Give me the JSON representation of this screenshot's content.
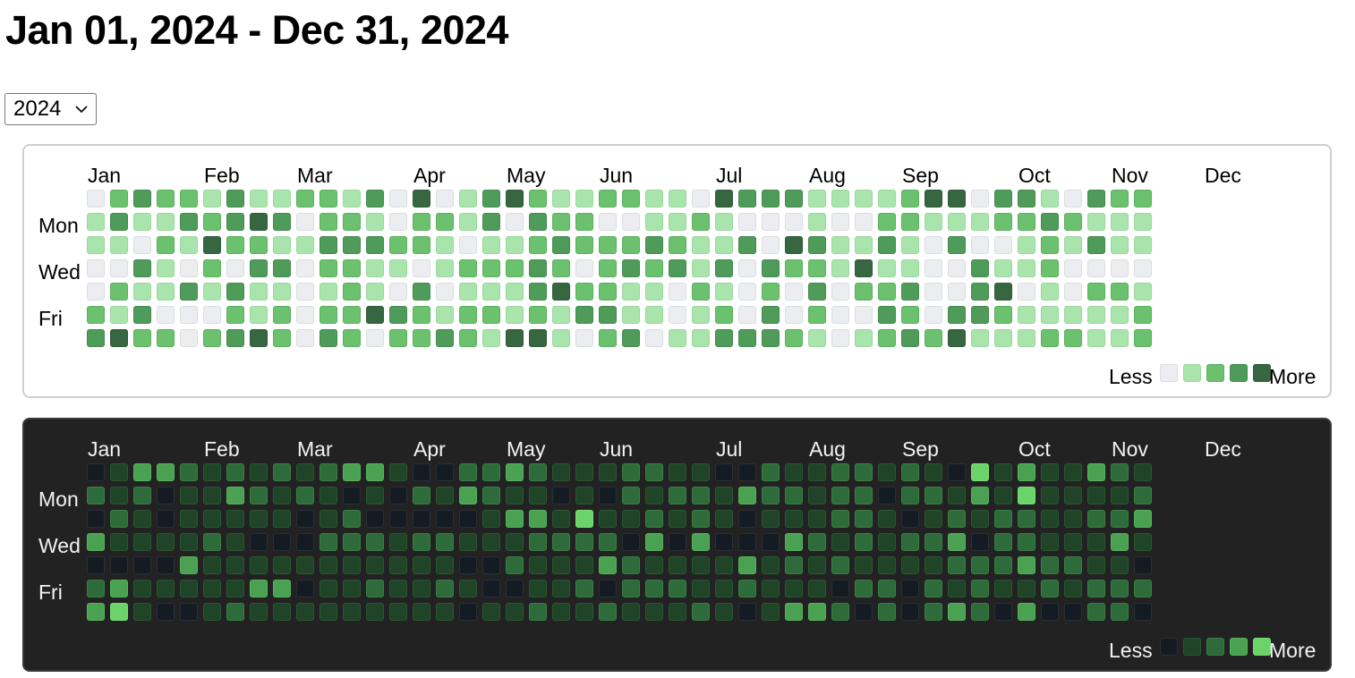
{
  "title": "Jan 01, 2024 - Dec 31, 2024",
  "year_select": {
    "value": "2024"
  },
  "months": [
    "Jan",
    "Feb",
    "Mar",
    "Apr",
    "May",
    "Jun",
    "Jul",
    "Aug",
    "Sep",
    "Oct",
    "Nov",
    "Dec"
  ],
  "day_labels": [
    "Mon",
    "Wed",
    "Fri"
  ],
  "legend": {
    "less": "Less",
    "more": "More"
  },
  "palettes": {
    "light": {
      "levels": [
        "#ebedf0",
        "#aae4ad",
        "#6bc16d",
        "#4f9b5a",
        "#376740"
      ],
      "border": [
        "#dcdde1",
        "#9bd79f",
        "#5cb05f",
        "#458a50",
        "#2f5a37"
      ]
    },
    "dark": {
      "levels": [
        "#151b23",
        "#1f4427",
        "#2e6b3a",
        "#4aa152",
        "#6bd36a"
      ],
      "border": [
        "#2a3038",
        "#2c5633",
        "#3b7d46",
        "#58b15f",
        "#7ade78"
      ]
    }
  },
  "calendar": {
    "first_weekday": "Monday",
    "light_levels": [
      "0232213112213040134211221104333111124403310322",
      "1311323430221022130322001121000100221112232111",
      "1102142211333221011232223211304311310300121311",
      "0031020330221101222320232313032214110031120000",
      "0211313110121030111342211021020302230034010221",
      "2130002120224321221213311012030200320332111112",
      "3422023420320223214410230113332101232411122112"
    ],
    "dark_levels": [
      "0133212121233100223211122110021122121041311321",
      "2120113212101021321101021221322122022131411112",
      "0210111110120000013314112121011122101212211223",
      "3111121000222122111222203030003212122302211131",
      "0000311111111111002111321111312121111222322110",
      "2311111330112112100112022211211102202121121222",
      "3410012111111111011211211121013320202320300220"
    ]
  }
}
